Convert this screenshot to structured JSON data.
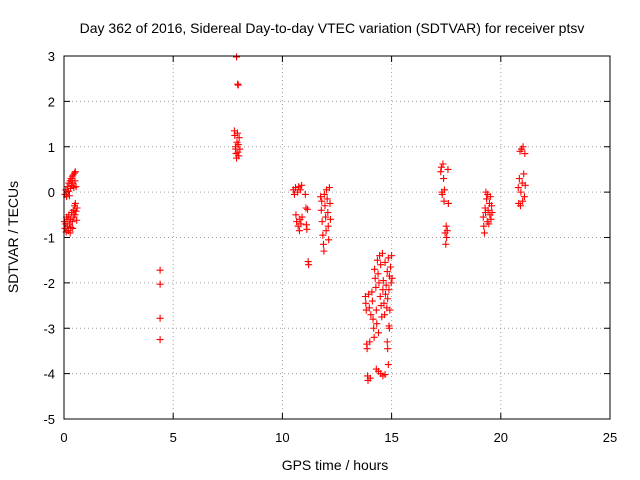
{
  "chart_data": {
    "type": "scatter",
    "title": "Day 362 of 2016, Sidereal Day-to-day VTEC variation (SDTVAR) for receiver ptsv",
    "xlabel": "GPS time / hours",
    "ylabel": "SDTVAR / TECUs",
    "xlim": [
      0,
      25
    ],
    "ylim": [
      -5,
      3
    ],
    "xticks": [
      0,
      5,
      10,
      15,
      20,
      25
    ],
    "yticks": [
      -5,
      -4,
      -3,
      -2,
      -1,
      0,
      1,
      2,
      3
    ],
    "grid": true,
    "marker": "+",
    "marker_color": "#ff0000",
    "series": [
      {
        "name": "SDTVAR",
        "points": [
          [
            0.02,
            -0.65
          ],
          [
            0.05,
            -0.8
          ],
          [
            0.08,
            -0.7
          ],
          [
            0.1,
            -0.88
          ],
          [
            0.12,
            -0.55
          ],
          [
            0.15,
            -0.75
          ],
          [
            0.18,
            -0.6
          ],
          [
            0.2,
            -0.85
          ],
          [
            0.22,
            -0.5
          ],
          [
            0.25,
            -0.7
          ],
          [
            0.28,
            -0.9
          ],
          [
            0.3,
            -0.6
          ],
          [
            0.32,
            -0.78
          ],
          [
            0.35,
            -0.45
          ],
          [
            0.38,
            -0.65
          ],
          [
            0.4,
            -0.8
          ],
          [
            0.42,
            -0.4
          ],
          [
            0.45,
            -0.55
          ],
          [
            0.48,
            -0.3
          ],
          [
            0.5,
            -0.5
          ],
          [
            0.52,
            -0.25
          ],
          [
            0.55,
            -0.42
          ],
          [
            0.58,
            -0.62
          ],
          [
            0.6,
            -0.35
          ],
          [
            0.05,
            -0.05
          ],
          [
            0.08,
            0.05
          ],
          [
            0.12,
            -0.1
          ],
          [
            0.15,
            0.12
          ],
          [
            0.2,
            0.02
          ],
          [
            0.22,
            0.2
          ],
          [
            0.25,
            -0.08
          ],
          [
            0.28,
            0.25
          ],
          [
            0.3,
            0.08
          ],
          [
            0.32,
            0.3
          ],
          [
            0.35,
            0.15
          ],
          [
            0.38,
            0.35
          ],
          [
            0.4,
            0.2
          ],
          [
            0.42,
            0.38
          ],
          [
            0.45,
            0.1
          ],
          [
            0.48,
            0.42
          ],
          [
            0.5,
            0.25
          ],
          [
            0.52,
            0.45
          ],
          [
            0.55,
            0.12
          ],
          [
            4.4,
            -1.72
          ],
          [
            4.4,
            -2.03
          ],
          [
            4.4,
            -2.78
          ],
          [
            4.4,
            -3.25
          ],
          [
            7.9,
            2.98
          ],
          [
            7.95,
            2.38
          ],
          [
            7.98,
            2.36
          ],
          [
            7.8,
            1.35
          ],
          [
            7.82,
            1.25
          ],
          [
            7.85,
            1.0
          ],
          [
            7.86,
            0.95
          ],
          [
            7.88,
            0.85
          ],
          [
            7.9,
            0.75
          ],
          [
            7.92,
            1.1
          ],
          [
            7.94,
            1.3
          ],
          [
            7.96,
            0.88
          ],
          [
            7.98,
            1.05
          ],
          [
            8.0,
            0.8
          ],
          [
            8.02,
            1.2
          ],
          [
            8.05,
            0.95
          ],
          [
            10.5,
            0.05
          ],
          [
            10.55,
            -0.05
          ],
          [
            10.6,
            0.1
          ],
          [
            10.62,
            -0.5
          ],
          [
            10.65,
            -0.65
          ],
          [
            10.7,
            0.0
          ],
          [
            10.72,
            -0.75
          ],
          [
            10.75,
            0.12
          ],
          [
            10.78,
            -0.85
          ],
          [
            10.8,
            -0.6
          ],
          [
            10.82,
            0.05
          ],
          [
            10.85,
            -0.7
          ],
          [
            10.88,
            0.15
          ],
          [
            10.9,
            -0.55
          ],
          [
            11.05,
            -0.05
          ],
          [
            11.08,
            -0.35
          ],
          [
            11.1,
            -0.72
          ],
          [
            11.12,
            -0.82
          ],
          [
            11.15,
            -0.38
          ],
          [
            11.18,
            -1.53
          ],
          [
            11.2,
            -1.6
          ],
          [
            11.75,
            -0.1
          ],
          [
            11.78,
            -0.4
          ],
          [
            11.8,
            -0.2
          ],
          [
            11.82,
            -0.65
          ],
          [
            11.85,
            -0.95
          ],
          [
            11.88,
            -1.15
          ],
          [
            11.9,
            -1.3
          ],
          [
            11.92,
            -0.05
          ],
          [
            11.95,
            -0.3
          ],
          [
            11.98,
            -0.55
          ],
          [
            12.0,
            -0.85
          ],
          [
            12.02,
            0.05
          ],
          [
            12.05,
            -0.15
          ],
          [
            12.08,
            -0.45
          ],
          [
            12.1,
            -0.75
          ],
          [
            12.12,
            -1.05
          ],
          [
            12.15,
            0.1
          ],
          [
            12.18,
            -0.25
          ],
          [
            12.2,
            -0.6
          ],
          [
            13.8,
            -2.3
          ],
          [
            13.82,
            -2.45
          ],
          [
            13.84,
            -2.6
          ],
          [
            13.86,
            -3.35
          ],
          [
            13.88,
            -3.45
          ],
          [
            13.9,
            -4.05
          ],
          [
            13.92,
            -4.15
          ],
          [
            13.95,
            -2.25
          ],
          [
            13.98,
            -2.55
          ],
          [
            14.0,
            -3.3
          ],
          [
            14.02,
            -4.1
          ],
          [
            14.05,
            -2.7
          ],
          [
            14.1,
            -2.2
          ],
          [
            14.12,
            -2.4
          ],
          [
            14.15,
            -2.8
          ],
          [
            14.18,
            -3.0
          ],
          [
            14.2,
            -3.2
          ],
          [
            14.22,
            -1.7
          ],
          [
            14.25,
            -1.9
          ],
          [
            14.28,
            -2.1
          ],
          [
            14.3,
            -2.6
          ],
          [
            14.32,
            -2.9
          ],
          [
            14.35,
            -1.5
          ],
          [
            14.38,
            -1.8
          ],
          [
            14.4,
            -3.1
          ],
          [
            14.42,
            -2.0
          ],
          [
            14.45,
            -1.4
          ],
          [
            14.48,
            -2.3
          ],
          [
            14.5,
            -1.6
          ],
          [
            14.52,
            -2.5
          ],
          [
            14.55,
            -2.75
          ],
          [
            14.58,
            -1.35
          ],
          [
            14.6,
            -2.15
          ],
          [
            14.62,
            -1.95
          ],
          [
            14.65,
            -2.45
          ],
          [
            14.68,
            -2.7
          ],
          [
            14.7,
            -1.55
          ],
          [
            14.72,
            -2.25
          ],
          [
            14.75,
            -2.05
          ],
          [
            14.78,
            -2.55
          ],
          [
            14.8,
            -1.75
          ],
          [
            14.82,
            -2.35
          ],
          [
            14.85,
            -1.45
          ],
          [
            14.88,
            -2.15
          ],
          [
            14.9,
            -1.85
          ],
          [
            14.92,
            -2.6
          ],
          [
            14.95,
            -1.65
          ],
          [
            14.98,
            -2.0
          ],
          [
            15.0,
            -1.4
          ],
          [
            15.02,
            -1.9
          ],
          [
            14.3,
            -3.9
          ],
          [
            14.4,
            -3.95
          ],
          [
            14.5,
            -4.0
          ],
          [
            14.6,
            -4.05
          ],
          [
            14.7,
            -4.02
          ],
          [
            14.8,
            -3.3
          ],
          [
            14.82,
            -3.45
          ],
          [
            14.85,
            -3.8
          ],
          [
            14.88,
            -2.95
          ],
          [
            14.9,
            -3.0
          ],
          [
            17.25,
            0.45
          ],
          [
            17.28,
            0.55
          ],
          [
            17.3,
            0.0
          ],
          [
            17.32,
            -0.05
          ],
          [
            17.35,
            0.62
          ],
          [
            17.38,
            0.3
          ],
          [
            17.4,
            -0.2
          ],
          [
            17.42,
            0.05
          ],
          [
            17.45,
            -0.9
          ],
          [
            17.48,
            -1.15
          ],
          [
            17.5,
            -0.75
          ],
          [
            17.52,
            -1.0
          ],
          [
            17.55,
            -0.85
          ],
          [
            17.58,
            0.5
          ],
          [
            17.6,
            -0.25
          ],
          [
            19.2,
            -0.55
          ],
          [
            19.22,
            -0.75
          ],
          [
            19.25,
            -0.9
          ],
          [
            19.28,
            -0.35
          ],
          [
            19.3,
            -0.45
          ],
          [
            19.32,
            0.0
          ],
          [
            19.35,
            -0.15
          ],
          [
            19.38,
            -0.65
          ],
          [
            19.4,
            -0.05
          ],
          [
            19.42,
            -0.4
          ],
          [
            19.45,
            -0.7
          ],
          [
            19.48,
            -0.25
          ],
          [
            19.5,
            -0.5
          ],
          [
            19.52,
            -0.1
          ],
          [
            19.55,
            -0.6
          ],
          [
            19.58,
            -0.3
          ],
          [
            19.6,
            -0.45
          ],
          [
            20.8,
            0.1
          ],
          [
            20.82,
            -0.25
          ],
          [
            20.85,
            0.3
          ],
          [
            20.88,
            0.9
          ],
          [
            20.9,
            -0.3
          ],
          [
            20.92,
            0.0
          ],
          [
            20.95,
            0.95
          ],
          [
            20.98,
            0.2
          ],
          [
            21.0,
            -0.2
          ],
          [
            21.02,
            1.0
          ],
          [
            21.05,
            0.4
          ],
          [
            21.08,
            -0.1
          ],
          [
            21.1,
            0.85
          ],
          [
            21.12,
            0.15
          ]
        ]
      }
    ]
  }
}
